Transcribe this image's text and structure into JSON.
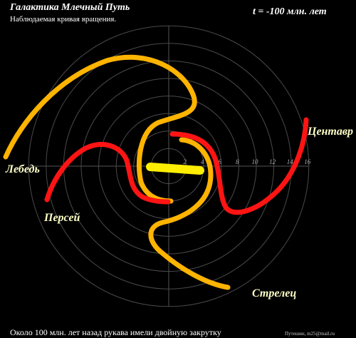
{
  "header": {
    "title": "Галактика Млечный Путь",
    "subtitle": "Наблюдаемая кривая вращения.",
    "time": "t = -100 млн. лет"
  },
  "axis": {
    "ticks": [
      2,
      4,
      6,
      8,
      10,
      12,
      14,
      16
    ]
  },
  "arms": {
    "labels": [
      "Лебедь",
      "Персей",
      "Центавр",
      "Стрелец"
    ]
  },
  "footer": {
    "caption": "Около 100 млн. лет назад рукава имели двойную закрутку",
    "credit": "Путешин, m25@mail.ru"
  }
}
